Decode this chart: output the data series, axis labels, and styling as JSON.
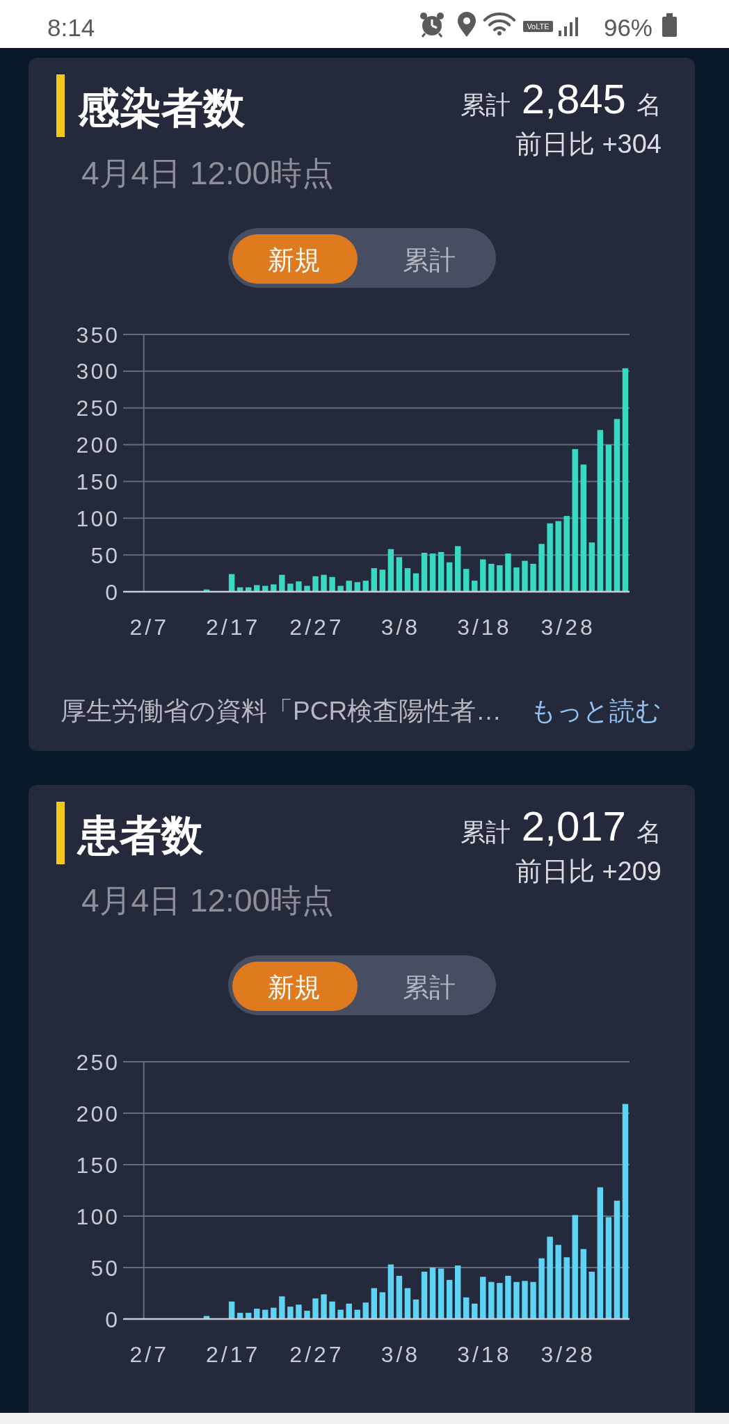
{
  "chart_data": [
    {
      "type": "bar",
      "title": "感染者数",
      "subtitle": "4月4日 12:00時点",
      "categories": [
        "2/7",
        null,
        null,
        null,
        null,
        null,
        null,
        null,
        null,
        null,
        "2/17",
        null,
        null,
        null,
        null,
        null,
        null,
        null,
        null,
        null,
        "2/27",
        null,
        null,
        null,
        null,
        null,
        null,
        null,
        null,
        null,
        "3/8",
        null,
        null,
        null,
        null,
        null,
        null,
        null,
        null,
        null,
        "3/18",
        null,
        null,
        null,
        null,
        null,
        null,
        null,
        null,
        null,
        "3/28",
        null,
        null,
        null,
        null,
        null,
        null,
        null
      ],
      "values": [
        0,
        0,
        0,
        0,
        0,
        0,
        0,
        3,
        0,
        0,
        24,
        6,
        6,
        9,
        8,
        10,
        23,
        11,
        14,
        8,
        21,
        23,
        20,
        8,
        15,
        13,
        15,
        32,
        30,
        58,
        47,
        32,
        25,
        53,
        52,
        54,
        40,
        62,
        31,
        15,
        44,
        38,
        36,
        52,
        33,
        42,
        38,
        65,
        93,
        96,
        103,
        194,
        173,
        67,
        220,
        200,
        235,
        304
      ],
      "color": "#38d9c3",
      "ylim": [
        0,
        350
      ],
      "yticks": [
        0,
        50,
        100,
        150,
        200,
        250,
        300,
        350
      ],
      "grid": "y",
      "annotations": [
        "累計",
        "2,845",
        "名",
        "前日比 +304",
        "新規",
        "累計",
        "厚生労働省の資料「PCR検査陽性者…",
        "もっと読む",
        "8:14",
        "VoLTE",
        "96%"
      ]
    },
    {
      "type": "bar",
      "title": "患者数",
      "subtitle": "4月4日 12:00時点",
      "categories": [
        "2/7",
        null,
        null,
        null,
        null,
        null,
        null,
        null,
        null,
        null,
        "2/17",
        null,
        null,
        null,
        null,
        null,
        null,
        null,
        null,
        null,
        "2/27",
        null,
        null,
        null,
        null,
        null,
        null,
        null,
        null,
        null,
        "3/8",
        null,
        null,
        null,
        null,
        null,
        null,
        null,
        null,
        null,
        "3/18",
        null,
        null,
        null,
        null,
        null,
        null,
        null,
        null,
        null,
        "3/28",
        null,
        null,
        null,
        null,
        null,
        null,
        null
      ],
      "values": [
        0,
        0,
        0,
        0,
        0,
        0,
        0,
        3,
        0,
        0,
        17,
        6,
        6,
        10,
        9,
        11,
        22,
        12,
        14,
        8,
        20,
        24,
        17,
        9,
        15,
        9,
        16,
        30,
        26,
        53,
        42,
        30,
        19,
        46,
        50,
        49,
        38,
        52,
        21,
        15,
        41,
        36,
        35,
        42,
        36,
        37,
        36,
        59,
        80,
        72,
        60,
        101,
        68,
        46,
        128,
        99,
        115,
        209
      ],
      "color": "#5ed3f4",
      "ylim": [
        0,
        250
      ],
      "yticks": [
        0,
        50,
        100,
        150,
        200,
        250
      ],
      "grid": "y",
      "annotations": [
        "累計",
        "2,017",
        "名",
        "前日比 +209",
        "新規",
        "累計"
      ]
    }
  ]
}
